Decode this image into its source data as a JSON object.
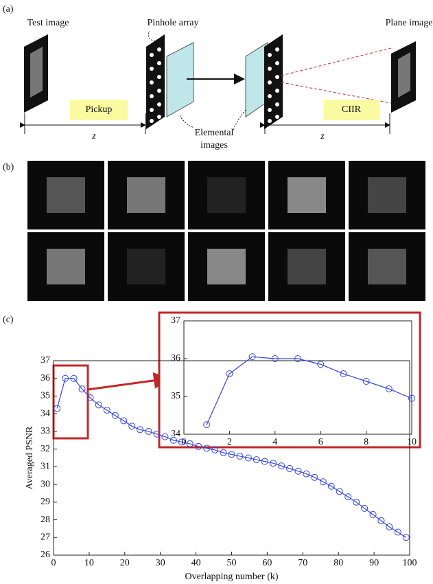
{
  "panel_a": {
    "label": "(a)",
    "test_image": "Test image",
    "pinhole_array": "Pinhole array",
    "plane_image": "Plane image",
    "pickup": "Pickup",
    "ciir": "CIIR",
    "elemental_images_1": "Elemental",
    "elemental_images_2": "images",
    "z_left": "z",
    "z_right": "z"
  },
  "panel_b": {
    "label": "(b)"
  },
  "panel_c": {
    "label": "(c)"
  },
  "chart_data": [
    {
      "type": "line",
      "x_label": "Overlapping number (k)",
      "y_label": "Averaged PSNR",
      "xlim": [
        0,
        100
      ],
      "ylim": [
        26,
        37
      ],
      "xticks": [
        0,
        10,
        20,
        30,
        40,
        50,
        60,
        70,
        80,
        90,
        100
      ],
      "yticks": [
        26,
        27,
        28,
        29,
        30,
        31,
        32,
        33,
        34,
        35,
        36,
        37
      ],
      "color": "#3344dd",
      "x": [
        1,
        3.3,
        5.7,
        8,
        10.3,
        12.7,
        15,
        17.3,
        19.7,
        22,
        24.3,
        26.7,
        29,
        31.3,
        33.7,
        36,
        38.3,
        40.7,
        43,
        45.3,
        47.7,
        50,
        52.3,
        54.7,
        57,
        59.3,
        61.7,
        64,
        66.3,
        68.7,
        71,
        73.3,
        75.7,
        78,
        80.3,
        82.7,
        85,
        87.3,
        89.7,
        92,
        94.3,
        96.7,
        99
      ],
      "values": [
        34.3,
        36.0,
        36.0,
        35.4,
        34.9,
        34.5,
        34.2,
        33.9,
        33.6,
        33.3,
        33.1,
        33.0,
        32.85,
        32.7,
        32.5,
        32.4,
        32.3,
        32.15,
        32.05,
        31.95,
        31.8,
        31.7,
        31.6,
        31.5,
        31.4,
        31.3,
        31.2,
        31.05,
        30.9,
        30.75,
        30.6,
        30.4,
        30.15,
        29.9,
        29.6,
        29.3,
        29.0,
        28.65,
        28.3,
        27.95,
        27.6,
        27.3,
        27.0
      ]
    },
    {
      "type": "line",
      "xlim": [
        0,
        10
      ],
      "ylim": [
        34,
        37
      ],
      "xticks": [
        0,
        2,
        4,
        6,
        8,
        10
      ],
      "yticks": [
        34,
        35,
        36,
        37
      ],
      "color": "#3344dd",
      "x": [
        1,
        2,
        3,
        4,
        5,
        6,
        7,
        8,
        9,
        10
      ],
      "values": [
        34.25,
        35.6,
        36.05,
        36.0,
        36.0,
        35.85,
        35.6,
        35.4,
        35.2,
        34.95
      ]
    }
  ]
}
